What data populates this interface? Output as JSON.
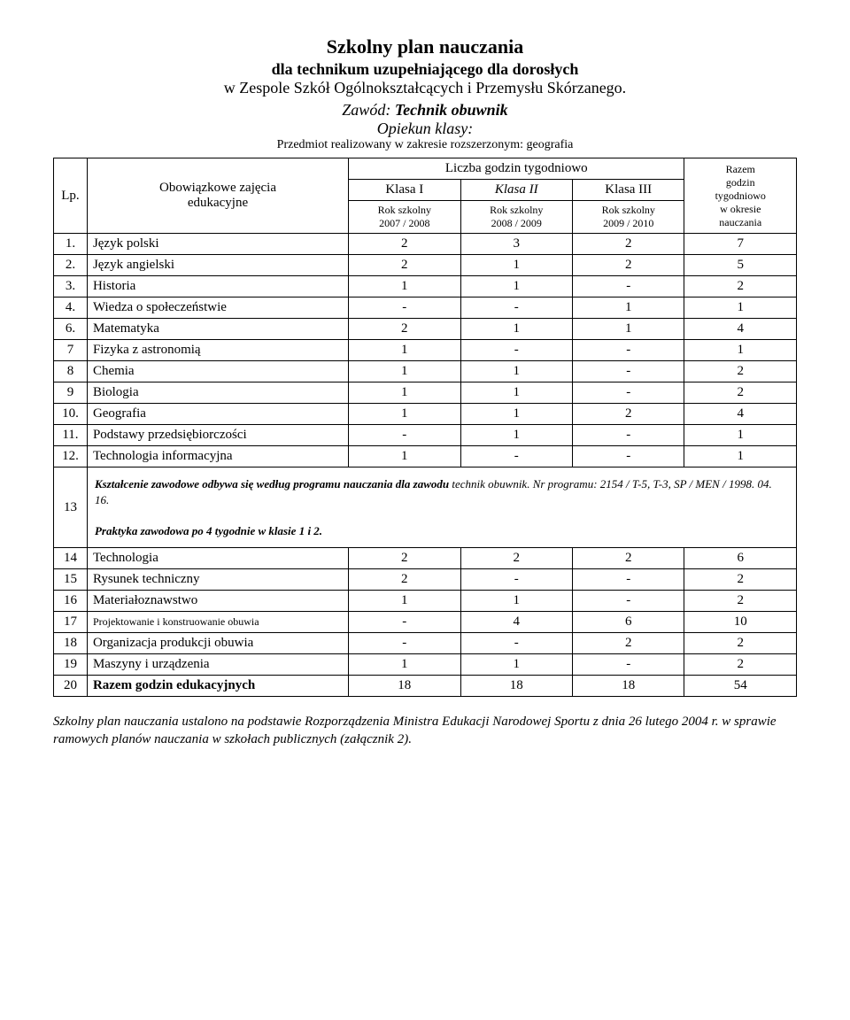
{
  "header": {
    "title": "Szkolny plan nauczania",
    "subtitle1": "dla technikum uzupełniającego dla dorosłych",
    "subtitle2": "w Zespole Szkół Ogólnokształcących i Przemysłu Skórzanego.",
    "subtitle3_prefix": "Zawód: ",
    "subtitle3_value": "Technik obuwnik",
    "subtitle4": "Opiekun klasy:",
    "subtitle5": "Przedmiot realizowany w zakresie rozszerzonym: geografia"
  },
  "table_head": {
    "lp": "Lp.",
    "subject_top": "Obowiązkowe zajęcia",
    "subject_bot": "edukacyjne",
    "hours": "Liczba godzin tygodniowo",
    "k1": "Klasa I",
    "k2": "Klasa II",
    "k3": "Klasa III",
    "y1": "Rok szkolny\n2007 / 2008",
    "y2": "Rok szkolny\n2008 / 2009",
    "y3": "Rok szkolny\n2009 / 2010",
    "total_top": "Razem",
    "total_mid1": "godzin",
    "total_mid2": "tygodniowo",
    "total_mid3": "w okresie",
    "total_bot": "nauczania"
  },
  "rows_general": [
    {
      "lp": "1.",
      "subject": "Język polski",
      "c1": "2",
      "c2": "3",
      "c3": "2",
      "t": "7"
    },
    {
      "lp": "2.",
      "subject": "Język angielski",
      "c1": "2",
      "c2": "1",
      "c3": "2",
      "t": "5"
    },
    {
      "lp": "3.",
      "subject": "Historia",
      "c1": "1",
      "c2": "1",
      "c3": "-",
      "t": "2"
    },
    {
      "lp": "4.",
      "subject": "Wiedza o społeczeństwie",
      "c1": "-",
      "c2": "-",
      "c3": "1",
      "t": "1"
    },
    {
      "lp": "6.",
      "subject": "Matematyka",
      "c1": "2",
      "c2": "1",
      "c3": "1",
      "t": "4"
    },
    {
      "lp": "7",
      "subject": "Fizyka z astronomią",
      "c1": "1",
      "c2": "-",
      "c3": "-",
      "t": "1"
    },
    {
      "lp": "8",
      "subject": "Chemia",
      "c1": "1",
      "c2": "1",
      "c3": "-",
      "t": "2"
    },
    {
      "lp": "9",
      "subject": "Biologia",
      "c1": "1",
      "c2": "1",
      "c3": "-",
      "t": "2"
    },
    {
      "lp": "10.",
      "subject": "Geografia",
      "c1": "1",
      "c2": "1",
      "c3": "2",
      "t": "4"
    },
    {
      "lp": "11.",
      "subject": "Podstawy przedsiębiorczości",
      "c1": "-",
      "c2": "1",
      "c3": "-",
      "t": "1"
    },
    {
      "lp": "12.",
      "subject": "Technologia informacyjna",
      "c1": "1",
      "c2": "-",
      "c3": "-",
      "t": "1"
    }
  ],
  "note": {
    "lp": "13",
    "line1_a": "Kształcenie zawodowe odbywa się według programu nauczania dla zawodu ",
    "line1_b": "technik obuwnik. Nr programu: 2154 / T-5, T-3, SP / MEN / 1998. 04. 16.",
    "line2": "Praktyka zawodowa po 4 tygodnie w klasie 1 i 2."
  },
  "rows_vocational": [
    {
      "lp": "14",
      "subject": "Technologia",
      "c1": "2",
      "c2": "2",
      "c3": "2",
      "t": "6"
    },
    {
      "lp": "15",
      "subject": "Rysunek techniczny",
      "c1": "2",
      "c2": "-",
      "c3": "-",
      "t": "2"
    },
    {
      "lp": "16",
      "subject": "Materiałoznawstwo",
      "c1": "1",
      "c2": "1",
      "c3": "-",
      "t": "2"
    },
    {
      "lp": "17",
      "subject": "Projektowanie i konstruowanie obuwia",
      "c1": "-",
      "c2": "4",
      "c3": "6",
      "t": "10",
      "small": true
    },
    {
      "lp": "18",
      "subject": "Organizacja produkcji obuwia",
      "c1": "-",
      "c2": "-",
      "c3": "2",
      "t": "2"
    },
    {
      "lp": "19",
      "subject": "Maszyny i urządzenia",
      "c1": "1",
      "c2": "1",
      "c3": "-",
      "t": "2"
    }
  ],
  "total_row": {
    "lp": "20",
    "subject": "Razem godzin edukacyjnych",
    "c1": "18",
    "c2": "18",
    "c3": "18",
    "t": "54"
  },
  "footer": "Szkolny plan nauczania ustalono na podstawie Rozporządzenia Ministra Edukacji Narodowej Sportu z dnia 26 lutego 2004 r. w sprawie ramowych planów nauczania w szkołach publicznych (załącznik 2)."
}
